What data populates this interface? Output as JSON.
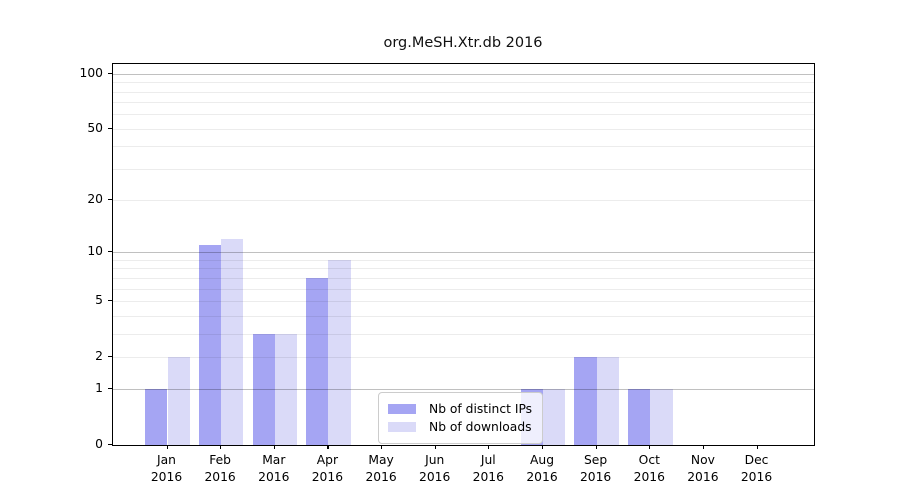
{
  "title": "org.MeSH.Xtr.db 2016",
  "chart_data": {
    "type": "bar",
    "title": "org.MeSH.Xtr.db 2016",
    "categories": [
      "Jan",
      "Feb",
      "Mar",
      "Apr",
      "May",
      "Jun",
      "Jul",
      "Aug",
      "Sep",
      "Oct",
      "Nov",
      "Dec"
    ],
    "category_year": "2016",
    "series": [
      {
        "name": "Nb of distinct IPs",
        "color": "#a5a5f3",
        "values": [
          1,
          11,
          3,
          7,
          0,
          0,
          0,
          1,
          2,
          1,
          0,
          0
        ]
      },
      {
        "name": "Nb of downloads",
        "color": "#dadaf8",
        "values": [
          2,
          12,
          3,
          9,
          0,
          0,
          0,
          1,
          2,
          1,
          0,
          0
        ]
      }
    ],
    "yscale": "log1p",
    "ylim": [
      0,
      113
    ],
    "yticks": [
      100,
      50,
      20,
      10,
      5,
      2,
      1,
      0
    ],
    "ytick_labels": [
      "100",
      "50",
      "20",
      "10",
      "5",
      "2",
      "1",
      "0"
    ],
    "major_gridlines": [
      1,
      10,
      100
    ],
    "minor_gridlines": [
      2,
      3,
      4,
      5,
      6,
      7,
      8,
      9,
      20,
      30,
      40,
      50,
      60,
      70,
      80,
      90
    ],
    "grid": true,
    "legend_position": "lower center"
  },
  "legend": {
    "items": [
      {
        "label": "Nb of distinct IPs",
        "color": "#a5a5f3"
      },
      {
        "label": "Nb of downloads",
        "color": "#dadaf8"
      }
    ]
  },
  "colors": {
    "bar_distinct_ips": "#a5a5f3",
    "bar_downloads": "#dadaf8",
    "grid_major": "#c0c0c0",
    "grid_minor": "#ececec",
    "spine": "#000000",
    "background": "#ffffff",
    "title_text": "#111111"
  }
}
